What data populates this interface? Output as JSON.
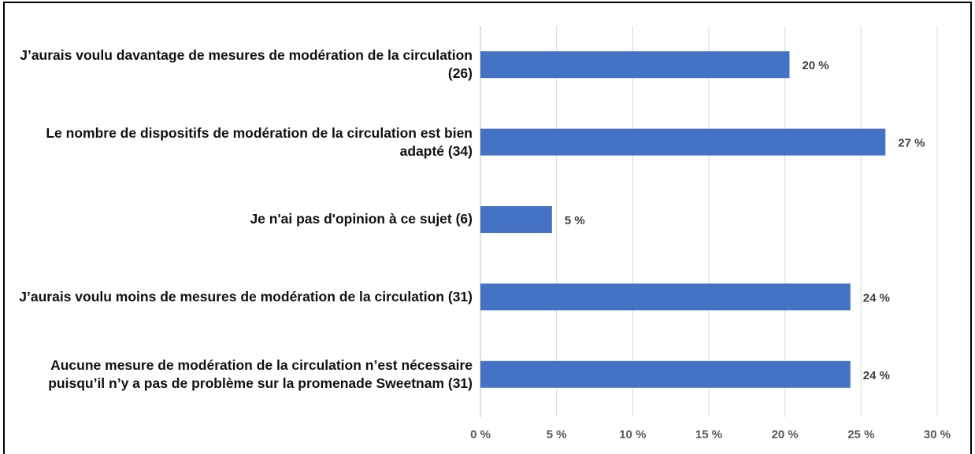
{
  "chart_data": {
    "type": "hbar",
    "categories": [
      "J’aurais voulu davantage de mesures de modération de la circulation (26)",
      "Le nombre de dispositifs de modération de la circulation est bien adapté (34)",
      "Je n'ai pas d'opinion à ce sujet (6)",
      "J’aurais voulu moins de mesures de modération de la circulation (31)",
      "Aucune mesure de modération de la circulation n’est nécessaire puisqu’il n’y a pas de problème sur la promenade Sweetnam (31)"
    ],
    "values": [
      20.3,
      26.6,
      4.7,
      24.3,
      24.3
    ],
    "value_labels": [
      "20 %",
      "27 %",
      "5 %",
      "24 %",
      "24 %"
    ],
    "color": "#4472c4",
    "xlim": [
      0,
      30
    ],
    "xticks": [
      {
        "value": 0,
        "label": "0 %"
      },
      {
        "value": 5,
        "label": "5 %"
      },
      {
        "value": 10,
        "label": "10 %"
      },
      {
        "value": 15,
        "label": "15 %"
      },
      {
        "value": 20,
        "label": "20 %"
      },
      {
        "value": 25,
        "label": "25 %"
      },
      {
        "value": 30,
        "label": "30 %"
      }
    ],
    "grid": true
  }
}
